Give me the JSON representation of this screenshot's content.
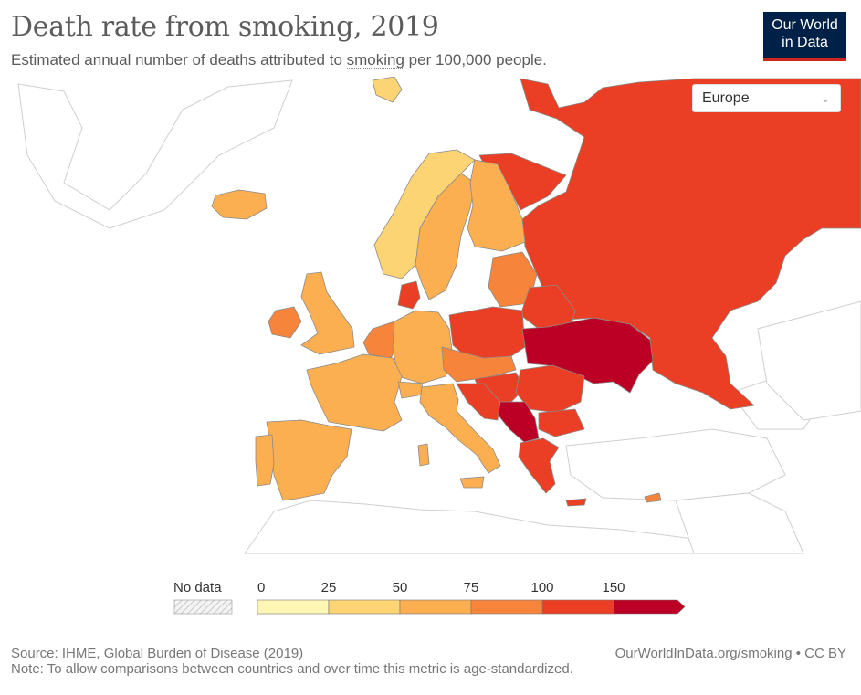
{
  "header": {
    "title": "Death rate from smoking, 2019",
    "subtitle_prefix": "Estimated annual number of deaths attributed to ",
    "subtitle_link": "smoking",
    "subtitle_suffix": " per 100,000 people.",
    "logo_line1": "Our World",
    "logo_line2": "in Data"
  },
  "region_selector": {
    "selected": "Europe",
    "icon": "chevron-down-icon"
  },
  "legend": {
    "no_data_label": "No data",
    "bins": [
      {
        "label": "0",
        "color": "#fef6b4"
      },
      {
        "label": "25",
        "color": "#fdd474"
      },
      {
        "label": "50",
        "color": "#fbaf50"
      },
      {
        "label": "75",
        "color": "#f6843a"
      },
      {
        "label": "100",
        "color": "#ea3f24"
      },
      {
        "label": "150",
        "color": "#bc0025"
      }
    ]
  },
  "colors": {
    "no_data": "#f3f3f3",
    "border": "#cfcfcf",
    "bin_0_25": "#fef6b4",
    "bin_25_50": "#fdd474",
    "bin_50_75": "#fbaf50",
    "bin_75_100": "#f6843a",
    "bin_100_150": "#ea3f24",
    "bin_150_plus": "#bc0025"
  },
  "map_regions": [
    {
      "name": "Russia",
      "bin": "100-150"
    },
    {
      "name": "Ukraine",
      "bin": "150+"
    },
    {
      "name": "Belarus",
      "bin": "100-150"
    },
    {
      "name": "Poland",
      "bin": "100-150"
    },
    {
      "name": "Germany",
      "bin": "50-75"
    },
    {
      "name": "France",
      "bin": "50-75"
    },
    {
      "name": "Spain",
      "bin": "50-75"
    },
    {
      "name": "Portugal",
      "bin": "50-75"
    },
    {
      "name": "Italy",
      "bin": "50-75"
    },
    {
      "name": "United Kingdom",
      "bin": "50-75"
    },
    {
      "name": "Ireland",
      "bin": "75-100"
    },
    {
      "name": "Iceland",
      "bin": "50-75"
    },
    {
      "name": "Norway",
      "bin": "25-50"
    },
    {
      "name": "Sweden",
      "bin": "50-75"
    },
    {
      "name": "Finland",
      "bin": "50-75"
    },
    {
      "name": "Denmark",
      "bin": "100-150"
    },
    {
      "name": "Netherlands",
      "bin": "75-100"
    },
    {
      "name": "Baltics",
      "bin": "75-100"
    },
    {
      "name": "Hungary",
      "bin": "100-150"
    },
    {
      "name": "Romania",
      "bin": "100-150"
    },
    {
      "name": "Bulgaria",
      "bin": "100-150"
    },
    {
      "name": "Serbia",
      "bin": "150+"
    },
    {
      "name": "Greece",
      "bin": "100-150"
    },
    {
      "name": "Cyprus",
      "bin": "75-100"
    },
    {
      "name": "Svalbard",
      "bin": "25-50"
    }
  ],
  "footer": {
    "source": "Source: IHME, Global Burden of Disease (2019)",
    "note": "Note: To allow comparisons between countries and over time this metric is age-standardized.",
    "url": "OurWorldInData.org/smoking • CC BY"
  }
}
